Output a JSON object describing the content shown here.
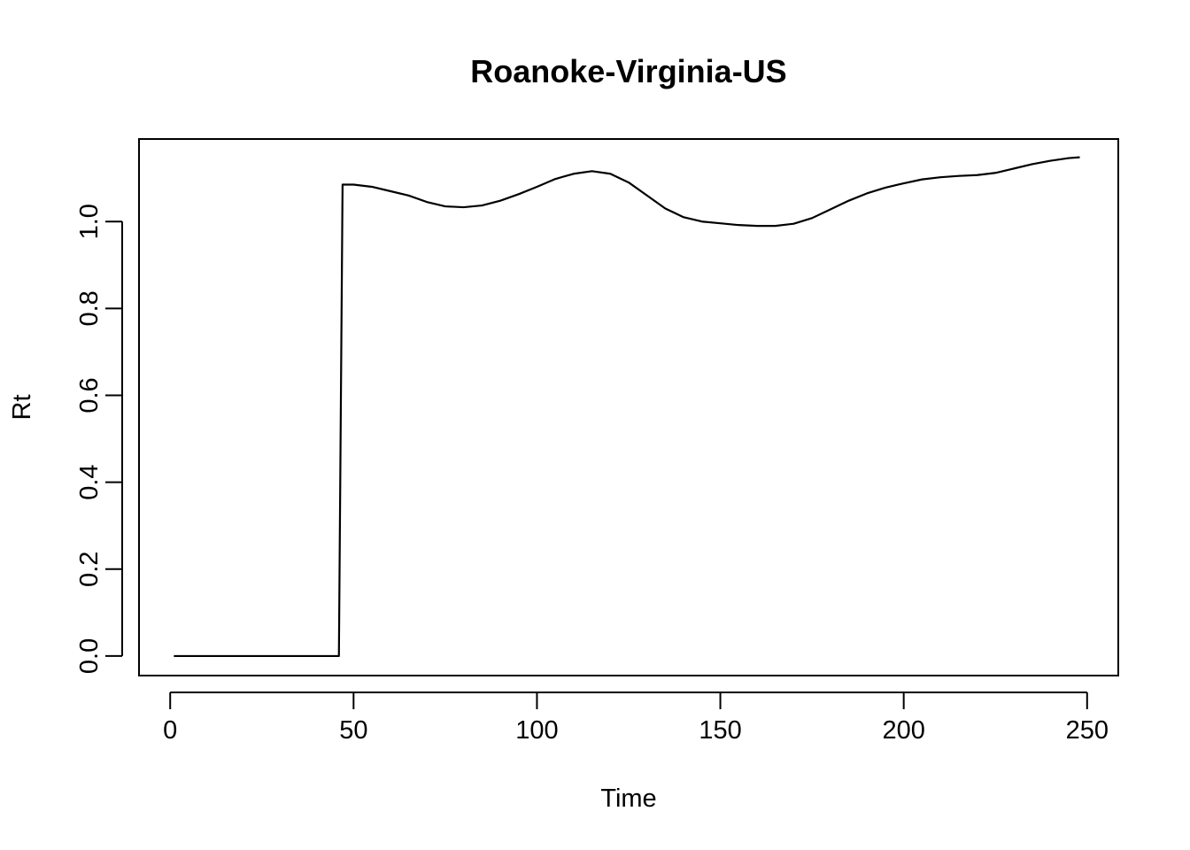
{
  "chart_data": {
    "type": "line",
    "title": "Roanoke-Virginia-US",
    "xlabel": "Time",
    "ylabel": "Rt",
    "xlim": [
      -8.5,
      258.5
    ],
    "ylim": [
      -0.045,
      1.19
    ],
    "xticks": [
      0,
      50,
      100,
      150,
      200,
      250
    ],
    "yticks": [
      0.0,
      0.2,
      0.4,
      0.6,
      0.8,
      1.0
    ],
    "ytick_labels": [
      "0.0",
      "0.2",
      "0.4",
      "0.6",
      "0.8",
      "1.0"
    ],
    "grid": false,
    "legend": "none",
    "series": [
      {
        "color": "#000000",
        "x": [
          1,
          10,
          20,
          30,
          40,
          46,
          47,
          50,
          55,
          60,
          65,
          70,
          75,
          80,
          85,
          90,
          95,
          100,
          105,
          110,
          115,
          120,
          125,
          130,
          135,
          140,
          145,
          150,
          155,
          160,
          165,
          170,
          175,
          180,
          185,
          190,
          195,
          200,
          205,
          210,
          215,
          220,
          225,
          230,
          235,
          240,
          245,
          248
        ],
        "y": [
          0.0,
          0.0,
          0.0,
          0.0,
          0.0,
          0.0,
          1.085,
          1.085,
          1.08,
          1.07,
          1.06,
          1.045,
          1.035,
          1.033,
          1.037,
          1.048,
          1.063,
          1.08,
          1.098,
          1.11,
          1.116,
          1.11,
          1.09,
          1.06,
          1.03,
          1.01,
          1.0,
          0.996,
          0.992,
          0.99,
          0.99,
          0.995,
          1.008,
          1.028,
          1.048,
          1.065,
          1.078,
          1.088,
          1.097,
          1.102,
          1.105,
          1.107,
          1.112,
          1.122,
          1.132,
          1.14,
          1.146,
          1.148
        ]
      }
    ]
  }
}
